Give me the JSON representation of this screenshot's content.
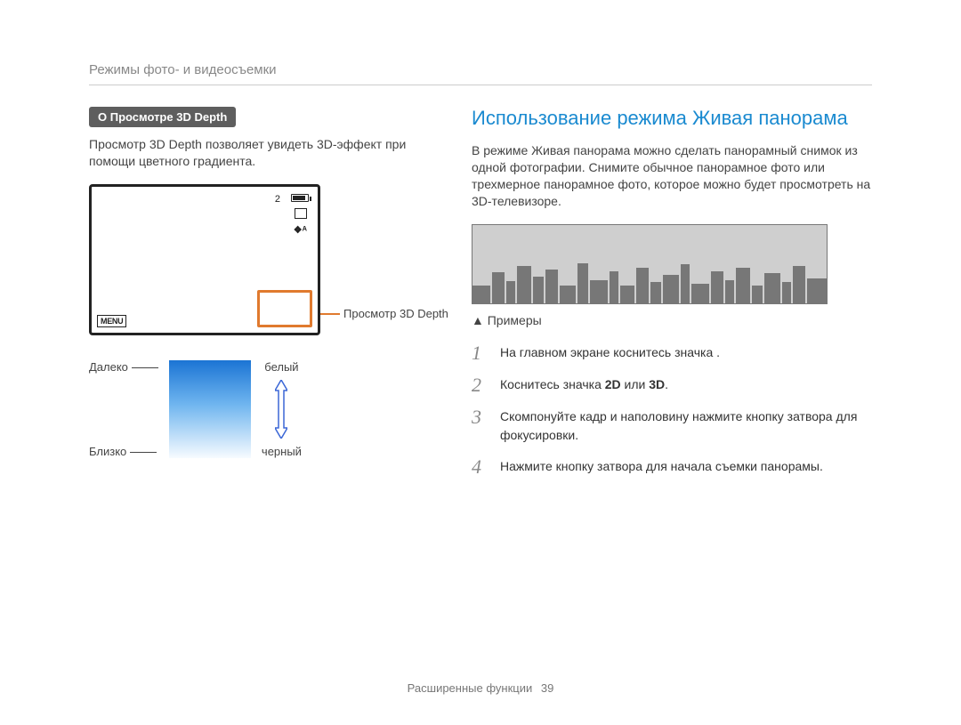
{
  "breadcrumb": "Режимы фото- и видеосъемки",
  "left": {
    "info_tag": "О Просмотре 3D Depth",
    "intro": "Просмотр 3D Depth позволяет увидеть 3D-эффект при помощи цветного градиента.",
    "screen": {
      "count_label": "2",
      "menu_label": "MENU",
      "flash_label": "❖ᴬ",
      "inset_border_color": "#e07a2e"
    },
    "callout": "Просмотр 3D Depth",
    "gradient": {
      "far_label": "Далеко",
      "near_label": "Близко",
      "white_label": "белый",
      "black_label": "черный",
      "top_color": "#1b74d4",
      "mid_color": "#6fb5ef",
      "bottom_color": "#f7fbff",
      "arrow_color": "#3b67d6"
    }
  },
  "right": {
    "title": "Использование режима Живая панорама",
    "intro": "В режиме Живая панорама можно сделать панорамный снимок из одной фотографии. Снимите обычное панорамное фото или трехмерное панорамное фото, которое можно будет просмотреть на 3D-телевизоре.",
    "examples_label": "▲ Примеры",
    "panorama_colors": {
      "sky": "#cfcfcf",
      "buildings": "#777777",
      "border": "#777777"
    },
    "steps": [
      {
        "n": "1",
        "html": "На главном экране коснитесь значка      ."
      },
      {
        "n": "2",
        "html": "Коснитесь значка <b>2D</b> или <b>3D</b>."
      },
      {
        "n": "3",
        "html": "Скомпонуйте кадр и наполовину нажмите кнопку затвора для фокусировки."
      },
      {
        "n": "4",
        "html": "Нажмите кнопку затвора для начала съемки панорамы."
      }
    ]
  },
  "footer": {
    "section": "Расширенные функции",
    "page": "39"
  }
}
